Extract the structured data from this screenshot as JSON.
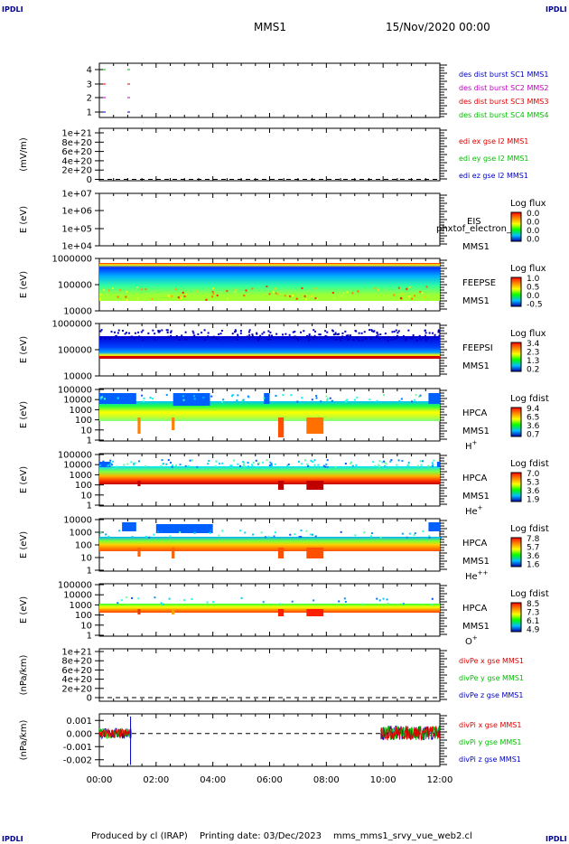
{
  "header": {
    "mission": "MMS1",
    "datetime": "15/Nov/2020 00:00",
    "corner_label": "IPDLI"
  },
  "footer": {
    "producer": "Produced by cl (IRAP)",
    "printing": "Printing date: 03/Dec/2023",
    "script": "mms_mms1_srvy_vue_web2.cl"
  },
  "time_axis": {
    "ticks": [
      "00:00",
      "02:00",
      "04:00",
      "06:00",
      "08:00",
      "10:00",
      "12:00"
    ]
  },
  "colors": {
    "red": "#e00000",
    "green": "#00c000",
    "blue": "#0000c0",
    "magenta": "#c000c0",
    "dark": "#000000"
  },
  "chart_data": [
    {
      "type": "line",
      "id": "burst",
      "ylim": [
        0.5,
        4.5
      ],
      "ticks": [
        "4",
        "3",
        "2",
        "1"
      ],
      "legend": [
        {
          "text": "des dist burst SC1 MMS1",
          "color": "#0000c0"
        },
        {
          "text": "des dist burst SC2 MMS2",
          "color": "#c000c0"
        },
        {
          "text": "des dist burst SC3 MMS3",
          "color": "#e00000"
        },
        {
          "text": "des dist burst SC4 MMS4",
          "color": "#00c000"
        }
      ]
    },
    {
      "type": "line",
      "id": "edi",
      "ylabel": "(mV/m)",
      "ticks": [
        "1e+21",
        "8e+20",
        "6e+20",
        "4e+20",
        "2e+20",
        "0"
      ],
      "legend": [
        {
          "text": "edi ex gse l2 MMS1",
          "color": "#e00000"
        },
        {
          "text": "edi ey gse l2 MMS1",
          "color": "#00c000"
        },
        {
          "text": "edi ez gse l2 MMS1",
          "color": "#0000c0"
        }
      ]
    },
    {
      "type": "heatmap",
      "id": "eis",
      "ylabel": "E (eV)",
      "ticks": [
        "1e+07",
        "1e+06",
        "1e+05",
        "1e+04"
      ],
      "labels": [
        "EIS",
        "MMS1"
      ],
      "overlay": "phxtof_electron_tc",
      "cbar_title": "Log flux",
      "cbar_ticks": [
        "0.0",
        "0.0",
        "0.0",
        "0.0"
      ]
    },
    {
      "type": "heatmap",
      "id": "feepse",
      "ylabel": "E (eV)",
      "ticks": [
        "1000000",
        "100000",
        "10000"
      ],
      "labels": [
        "FEEPSE",
        "MMS1"
      ],
      "cbar_title": "Log flux",
      "cbar_ticks": [
        "1.0",
        "0.5",
        "0.0",
        "-0.5"
      ]
    },
    {
      "type": "heatmap",
      "id": "feepsi",
      "ylabel": "E (eV)",
      "ticks": [
        "1000000",
        "100000",
        "10000"
      ],
      "labels": [
        "FEEPSI",
        "MMS1"
      ],
      "cbar_title": "Log flux",
      "cbar_ticks": [
        "3.4",
        "2.3",
        "1.3",
        "0.2"
      ]
    },
    {
      "type": "heatmap",
      "id": "hpca_h",
      "ylabel": "E (eV)",
      "ticks": [
        "100000",
        "10000",
        "1000",
        "100",
        "10",
        "1"
      ],
      "labels": [
        "HPCA",
        "MMS1",
        "H+"
      ],
      "cbar_title": "Log fdist",
      "cbar_ticks": [
        "9.4",
        "6.5",
        "3.6",
        "0.7"
      ]
    },
    {
      "type": "heatmap",
      "id": "hpca_he",
      "ylabel": "E (eV)",
      "ticks": [
        "100000",
        "10000",
        "1000",
        "100",
        "10",
        "1"
      ],
      "labels": [
        "HPCA",
        "MMS1",
        "He+"
      ],
      "cbar_title": "Log fdist",
      "cbar_ticks": [
        "7.0",
        "5.3",
        "3.6",
        "1.9"
      ]
    },
    {
      "type": "heatmap",
      "id": "hpca_hepp",
      "ylabel": "E (eV)",
      "ticks": [
        "10000",
        "1000",
        "100",
        "10",
        "1"
      ],
      "labels": [
        "HPCA",
        "MMS1",
        "He++"
      ],
      "cbar_title": "Log fdist",
      "cbar_ticks": [
        "7.8",
        "5.7",
        "3.6",
        "1.6"
      ]
    },
    {
      "type": "heatmap",
      "id": "hpca_o",
      "ylabel": "E (eV)",
      "ticks": [
        "100000",
        "10000",
        "1000",
        "100",
        "10",
        "1"
      ],
      "labels": [
        "HPCA",
        "MMS1",
        "O+"
      ],
      "cbar_title": "Log fdist",
      "cbar_ticks": [
        "8.5",
        "7.3",
        "6.1",
        "4.9"
      ]
    },
    {
      "type": "line",
      "id": "divpe",
      "ylabel": "(nPa/km)",
      "ticks": [
        "1e+21",
        "8e+20",
        "6e+20",
        "4e+20",
        "2e+20",
        "0"
      ],
      "legend": [
        {
          "text": "divPe x gse MMS1",
          "color": "#e00000"
        },
        {
          "text": "divPe y gse MMS1",
          "color": "#00c000"
        },
        {
          "text": "divPe z gse MMS1",
          "color": "#0000c0"
        }
      ]
    },
    {
      "type": "line",
      "id": "divpi",
      "ylabel": "(nPa/km)",
      "ylim": [
        -0.0025,
        0.0015
      ],
      "ticks": [
        "0.001",
        "0.000",
        "-0.001",
        "-0.002"
      ],
      "legend": [
        {
          "text": "divPi x gse MMS1",
          "color": "#e00000"
        },
        {
          "text": "divPi y gse MMS1",
          "color": "#00c000"
        },
        {
          "text": "divPi z gse MMS1",
          "color": "#0000c0"
        }
      ],
      "data_segments": [
        {
          "x": [
            "00:00",
            "01:08"
          ],
          "y": [
            -0.0004,
            0.0004
          ]
        },
        {
          "x": [
            "09:55",
            "12:00"
          ],
          "y": [
            -0.0005,
            0.0006
          ]
        }
      ]
    }
  ]
}
